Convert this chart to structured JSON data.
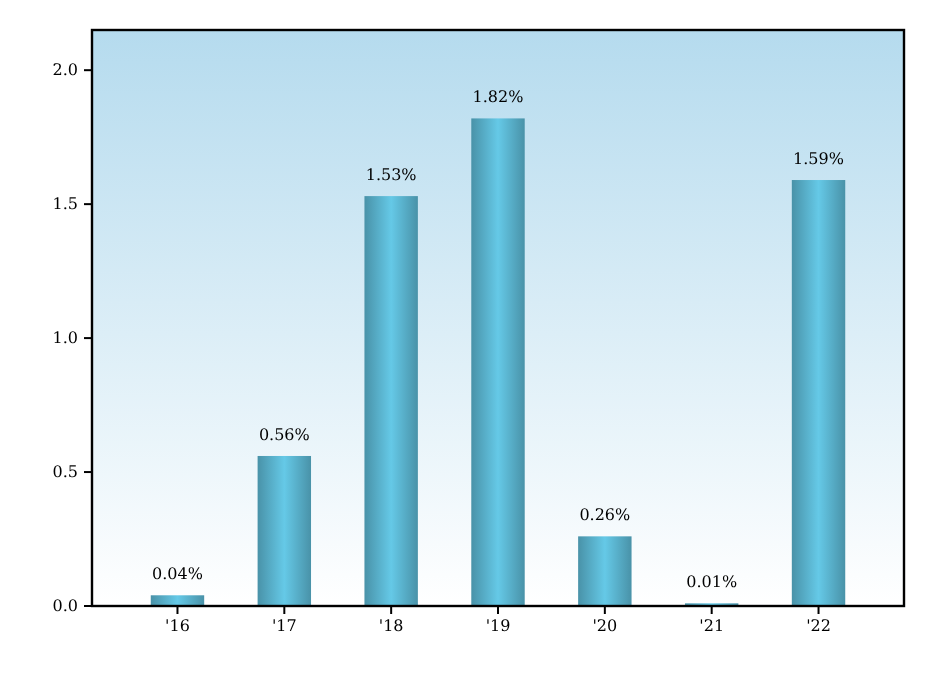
{
  "chart_data": {
    "type": "bar",
    "categories": [
      "'16",
      "'17",
      "'18",
      "'19",
      "'20",
      "'21",
      "'22"
    ],
    "values": [
      0.04,
      0.56,
      1.53,
      1.82,
      0.26,
      0.01,
      1.59
    ],
    "value_labels": [
      "0.04%",
      "0.56%",
      "1.53%",
      "1.82%",
      "0.26%",
      "0.01%",
      "1.59%"
    ],
    "color": "#5bb5d0",
    "ylim": [
      0,
      2.15
    ],
    "yticks": [
      {
        "value": 0,
        "label": "0.0"
      },
      {
        "value": 0.5,
        "label": "0.5"
      },
      {
        "value": 1,
        "label": "1.0"
      },
      {
        "value": 1.5,
        "label": "1.5"
      },
      {
        "value": 2,
        "label": "2.0"
      }
    ],
    "grid": false
  }
}
